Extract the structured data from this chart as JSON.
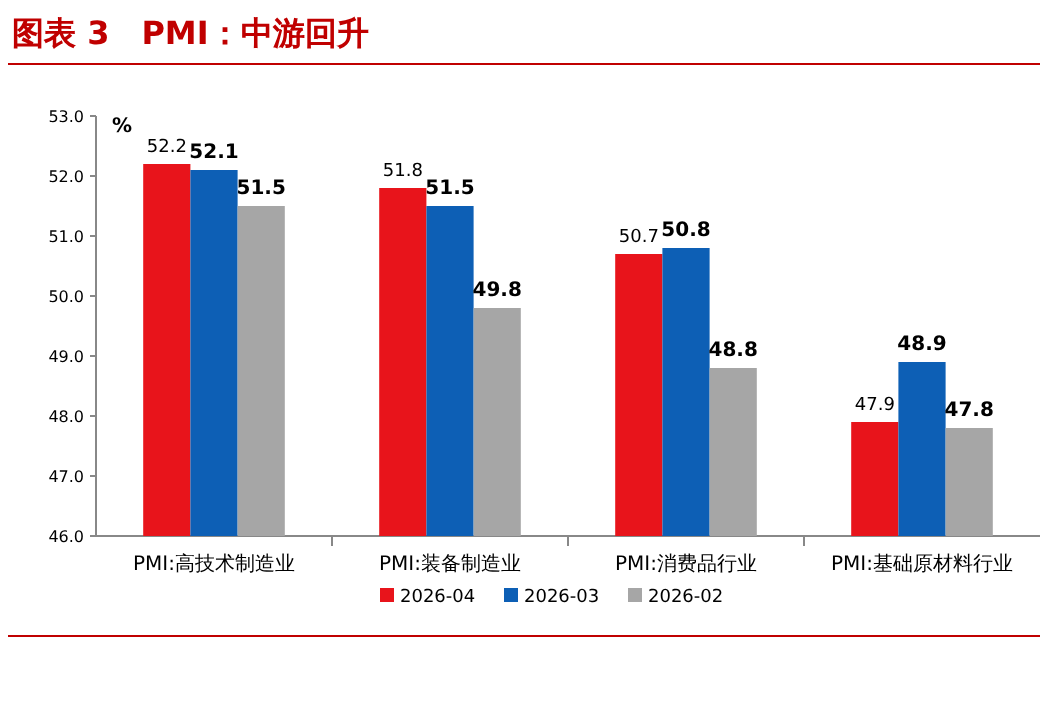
{
  "chart_data": {
    "type": "bar",
    "title": "图表 3　PMI：中游回升",
    "ylabel": "%",
    "categories": [
      "PMI:高技术制造业",
      "PMI:装备制造业",
      "PMI:消费品行业",
      "PMI:基础原材料行业"
    ],
    "series": [
      {
        "name": "2026-04",
        "color": "#e8141b",
        "values": [
          52.2,
          51.8,
          50.7,
          47.9
        ]
      },
      {
        "name": "2026-03",
        "color": "#0d5fb5",
        "values": [
          52.1,
          51.5,
          50.8,
          48.9
        ]
      },
      {
        "name": "2026-02",
        "color": "#a6a6a6",
        "values": [
          51.5,
          49.8,
          48.8,
          47.8
        ]
      }
    ],
    "ylim": [
      46,
      53
    ],
    "yticks": [
      {
        "value": 46,
        "label": "46.0"
      },
      {
        "value": 47,
        "label": "47.0"
      },
      {
        "value": 48,
        "label": "48.0"
      },
      {
        "value": 49,
        "label": "49.0"
      },
      {
        "value": 50,
        "label": "50.0"
      },
      {
        "value": 51,
        "label": "51.0"
      },
      {
        "value": 52,
        "label": "52.0"
      },
      {
        "value": 53,
        "label": "53.0"
      }
    ],
    "data_labels": true,
    "legend": "bottom",
    "grid": false
  }
}
